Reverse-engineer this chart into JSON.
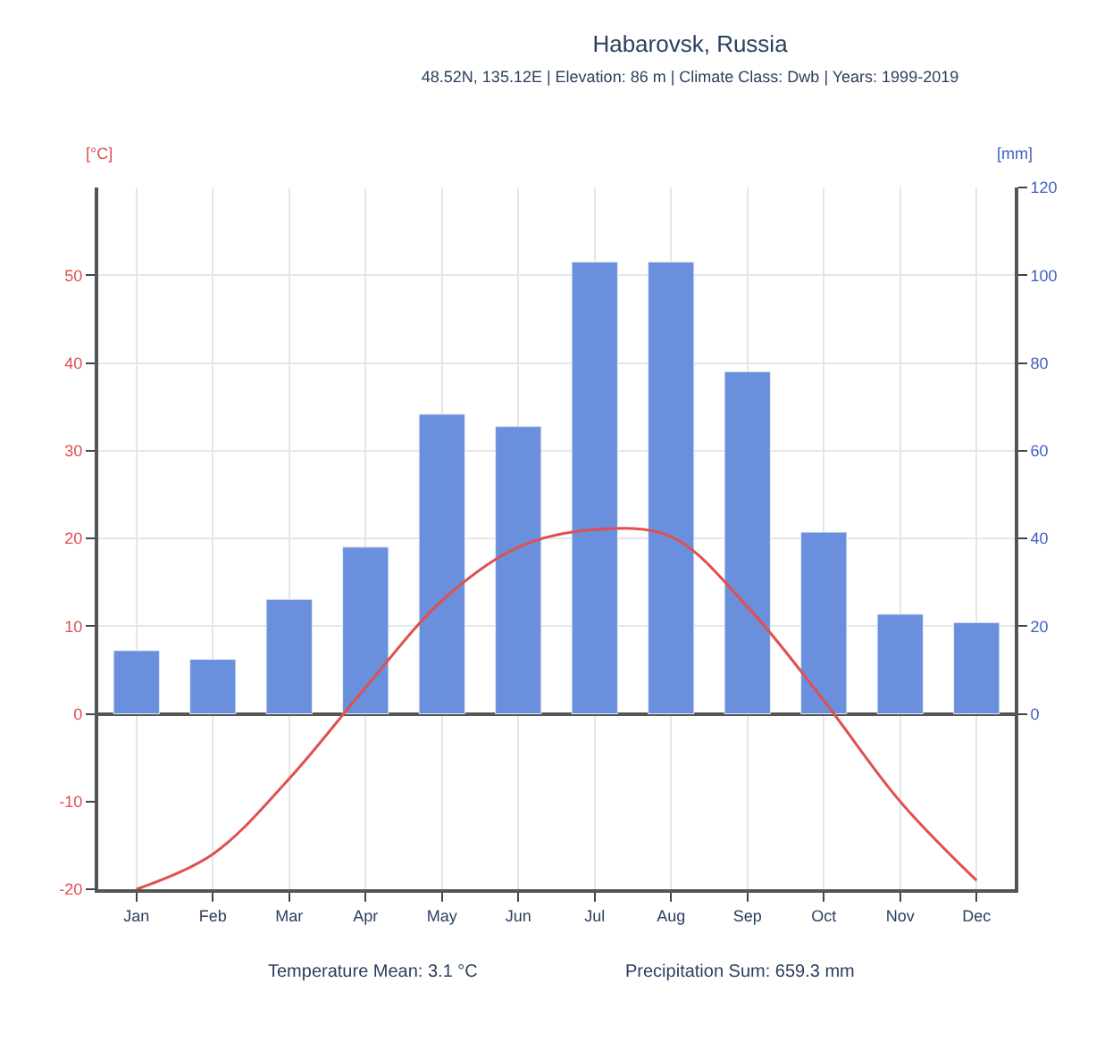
{
  "chart_data": {
    "type": "bar",
    "title": "Habarovsk, Russia",
    "subtitle": "48.52N, 135.12E | Elevation: 86 m | Climate Class: Dwb | Years: 1999-2019",
    "categories": [
      "Jan",
      "Feb",
      "Mar",
      "Apr",
      "May",
      "Jun",
      "Jul",
      "Aug",
      "Sep",
      "Oct",
      "Nov",
      "Dec"
    ],
    "series": [
      {
        "axis": "y2",
        "color": "#6a8fdc",
        "values": [
          14.4,
          12.4,
          26.1,
          38,
          68.3,
          65.5,
          103,
          103,
          78,
          41.4,
          22.7,
          20.8
        ]
      },
      {
        "type": "line",
        "axis": "y",
        "color": "#e05050",
        "values": [
          -20,
          -16,
          -7.4,
          3,
          12.9,
          19,
          21,
          20.2,
          12.2,
          1.5,
          -10,
          -19
        ]
      }
    ],
    "ylabel": "[°C]",
    "y2label": "[mm]",
    "ylim": [
      -20,
      60
    ],
    "yticks": [
      -20,
      -10,
      0,
      10,
      20,
      30,
      40,
      50
    ],
    "y2lim": [
      -40,
      120
    ],
    "y2ticks": [
      0,
      20,
      40,
      60,
      80,
      100,
      120
    ],
    "grid": true,
    "marker": "none",
    "line_style": "solid",
    "annotations": [
      "Temperature Mean: 3.1 °C",
      "Precipitation Sum: 659.3 mm"
    ]
  }
}
